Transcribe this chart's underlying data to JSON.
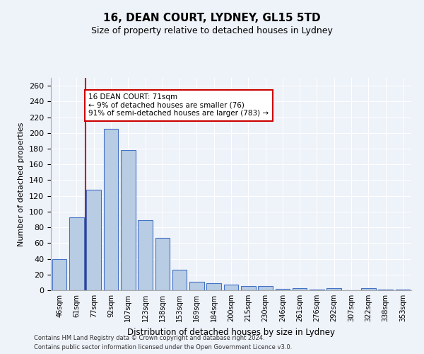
{
  "title1": "16, DEAN COURT, LYDNEY, GL15 5TD",
  "title2": "Size of property relative to detached houses in Lydney",
  "xlabel": "Distribution of detached houses by size in Lydney",
  "ylabel": "Number of detached properties",
  "categories": [
    "46sqm",
    "61sqm",
    "77sqm",
    "92sqm",
    "107sqm",
    "123sqm",
    "138sqm",
    "153sqm",
    "169sqm",
    "184sqm",
    "200sqm",
    "215sqm",
    "230sqm",
    "246sqm",
    "261sqm",
    "276sqm",
    "292sqm",
    "307sqm",
    "322sqm",
    "338sqm",
    "353sqm"
  ],
  "values": [
    40,
    93,
    128,
    205,
    178,
    89,
    67,
    26,
    11,
    9,
    7,
    5,
    5,
    2,
    3,
    1,
    3,
    0,
    3,
    1,
    1
  ],
  "bar_color": "#b8cce4",
  "bar_edge_color": "#4472c4",
  "vline_color": "#cc0000",
  "annotation_text": "16 DEAN COURT: 71sqm\n← 9% of detached houses are smaller (76)\n91% of semi-detached houses are larger (783) →",
  "annotation_box_color": "#ffffff",
  "annotation_box_edge": "#cc0000",
  "ylim": [
    0,
    270
  ],
  "yticks": [
    0,
    20,
    40,
    60,
    80,
    100,
    120,
    140,
    160,
    180,
    200,
    220,
    240,
    260
  ],
  "footer1": "Contains HM Land Registry data © Crown copyright and database right 2024.",
  "footer2": "Contains public sector information licensed under the Open Government Licence v3.0.",
  "bg_color": "#eef2f9",
  "plot_bg_color": "#eef2f9"
}
